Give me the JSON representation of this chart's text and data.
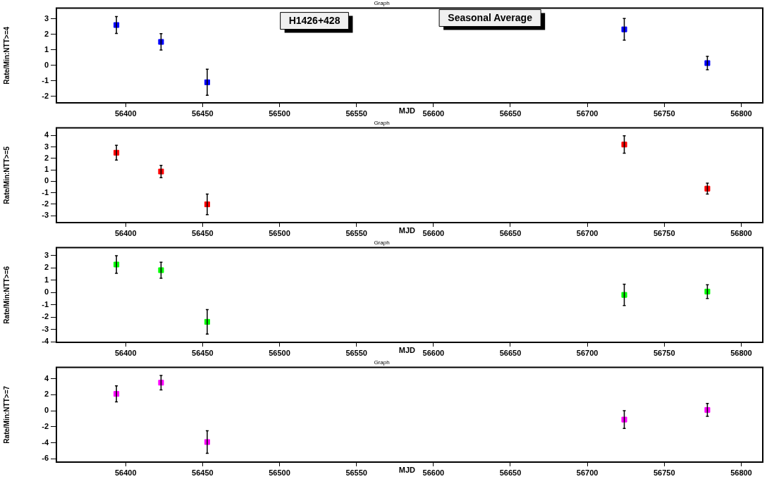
{
  "chart_data": [
    {
      "type": "scatter",
      "title": "Graph",
      "xlabel": "MJD",
      "ylabel": "Rate/Min:NTT>=4",
      "annotations": [
        "H1426+428",
        "Seasonal Average"
      ],
      "marker": "square",
      "xlim": [
        56355,
        56814
      ],
      "xticks": [
        56400,
        56450,
        56500,
        56550,
        56600,
        56650,
        56700,
        56750,
        56800
      ],
      "ylim": [
        -2.42,
        3.7
      ],
      "yticks": [
        -2,
        -1,
        0,
        1,
        2,
        3
      ],
      "series": [
        {
          "color": "#0000ff",
          "x": [
            56394,
            56423,
            56453,
            56724,
            56778
          ],
          "values": [
            2.61,
            1.52,
            -1.09,
            2.33,
            0.15
          ],
          "errors": [
            0.55,
            0.53,
            0.84,
            0.7,
            0.43
          ]
        }
      ]
    },
    {
      "type": "scatter",
      "title": "Graph",
      "xlabel": "MJD",
      "ylabel": "Rate/Min:NTT>=5",
      "marker": "square",
      "xlim": [
        56355,
        56814
      ],
      "xticks": [
        56400,
        56450,
        56500,
        56550,
        56600,
        56650,
        56700,
        56750,
        56800
      ],
      "ylim": [
        -3.6,
        4.65
      ],
      "yticks": [
        -3,
        -2,
        -1,
        0,
        1,
        2,
        3,
        4
      ],
      "series": [
        {
          "color": "#ff0000",
          "x": [
            56394,
            56423,
            56453,
            56724,
            56778
          ],
          "values": [
            2.49,
            0.85,
            -2.01,
            3.2,
            -0.64
          ],
          "errors": [
            0.64,
            0.53,
            0.9,
            0.76,
            0.47
          ]
        }
      ]
    },
    {
      "type": "scatter",
      "title": "Graph",
      "xlabel": "MJD",
      "ylabel": "Rate/Min:NTT>=6",
      "marker": "square",
      "xlim": [
        56355,
        56814
      ],
      "xticks": [
        56400,
        56450,
        56500,
        56550,
        56600,
        56650,
        56700,
        56750,
        56800
      ],
      "ylim": [
        -4.05,
        3.65
      ],
      "yticks": [
        -4,
        -3,
        -2,
        -1,
        0,
        1,
        2,
        3
      ],
      "series": [
        {
          "color": "#00ff00",
          "x": [
            56394,
            56423,
            56453,
            56724,
            56778
          ],
          "values": [
            2.28,
            1.82,
            -2.38,
            -0.19,
            0.08
          ],
          "errors": [
            0.72,
            0.65,
            1.0,
            0.86,
            0.56
          ]
        }
      ]
    },
    {
      "type": "scatter",
      "title": "Graph",
      "xlabel": "MJD",
      "ylabel": "Rate/Min:NTT>=7",
      "marker": "square",
      "xlim": [
        56355,
        56814
      ],
      "xticks": [
        56400,
        56450,
        56500,
        56550,
        56600,
        56650,
        56700,
        56750,
        56800
      ],
      "ylim": [
        -6.4,
        5.4
      ],
      "yticks": [
        -6,
        -4,
        -2,
        0,
        2,
        4
      ],
      "series": [
        {
          "color": "#ff00ff",
          "x": [
            56394,
            56423,
            56453,
            56724,
            56778
          ],
          "values": [
            2.1,
            3.5,
            -3.9,
            -1.1,
            0.1
          ],
          "errors": [
            1.0,
            0.9,
            1.4,
            1.1,
            0.8
          ]
        }
      ]
    }
  ]
}
